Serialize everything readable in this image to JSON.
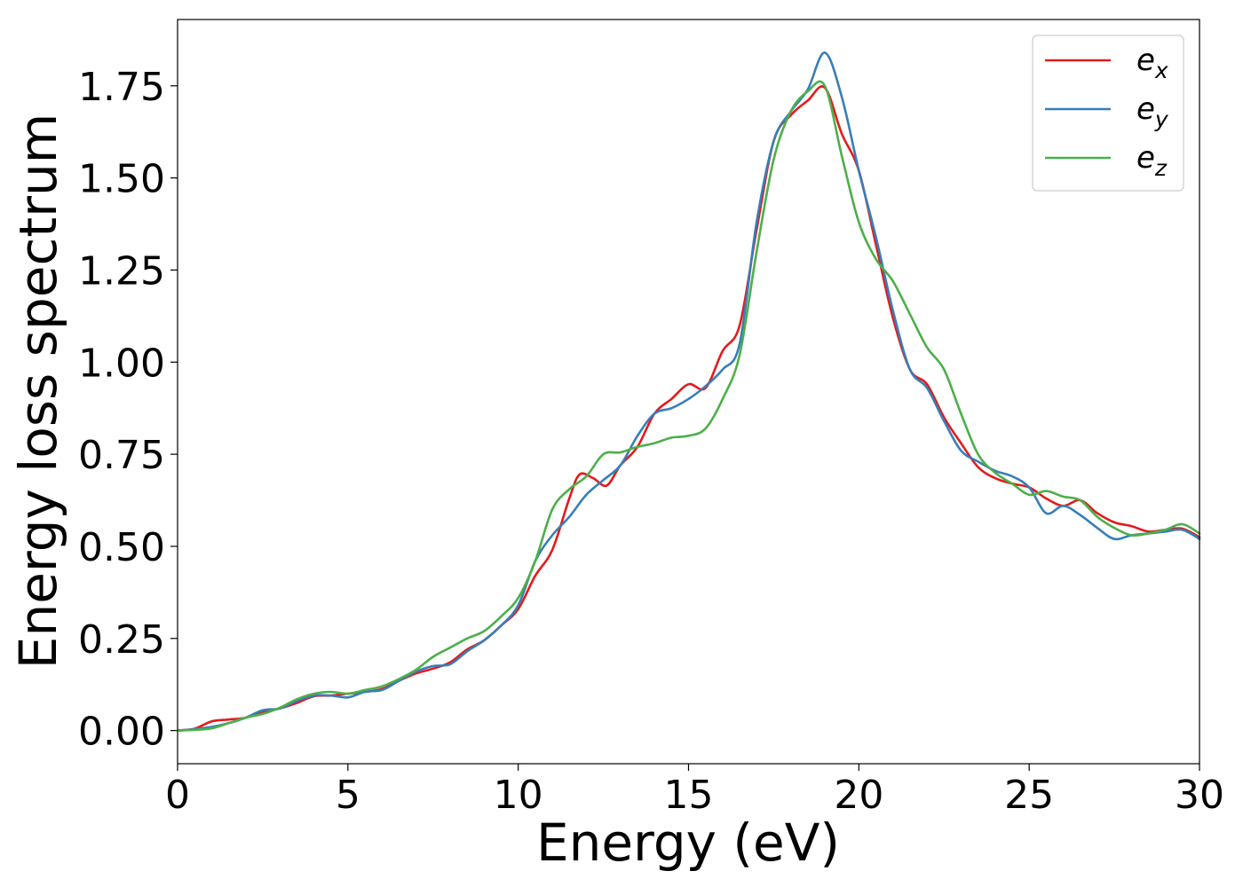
{
  "chart_data": {
    "type": "line",
    "title": "",
    "xlabel": "Energy (eV)",
    "ylabel": "Energy loss spectrum",
    "xlim": [
      0,
      30
    ],
    "ylim": [
      -0.09,
      1.93
    ],
    "x_ticks": [
      0,
      5,
      10,
      15,
      20,
      25,
      30
    ],
    "x_tick_labels": [
      "0",
      "5",
      "10",
      "15",
      "20",
      "25",
      "30"
    ],
    "y_ticks": [
      0.0,
      0.25,
      0.5,
      0.75,
      1.0,
      1.25,
      1.5,
      1.75
    ],
    "y_tick_labels": [
      "0.00",
      "0.25",
      "0.50",
      "0.75",
      "1.00",
      "1.25",
      "1.50",
      "1.75"
    ],
    "grid": false,
    "legend_position": "top-right",
    "series": [
      {
        "name": "e",
        "subscript": "x",
        "color": "#e41a1c",
        "points": [
          [
            0,
            0
          ],
          [
            0.5,
            0.005
          ],
          [
            1,
            0.025
          ],
          [
            1.5,
            0.03
          ],
          [
            2,
            0.035
          ],
          [
            2.5,
            0.05
          ],
          [
            3,
            0.06
          ],
          [
            3.5,
            0.075
          ],
          [
            4,
            0.093
          ],
          [
            4.5,
            0.095
          ],
          [
            5,
            0.1
          ],
          [
            5.5,
            0.105
          ],
          [
            6,
            0.113
          ],
          [
            6.5,
            0.135
          ],
          [
            7,
            0.155
          ],
          [
            7.5,
            0.168
          ],
          [
            8,
            0.185
          ],
          [
            8.5,
            0.22
          ],
          [
            9,
            0.245
          ],
          [
            9.5,
            0.285
          ],
          [
            10,
            0.33
          ],
          [
            10.5,
            0.42
          ],
          [
            11,
            0.49
          ],
          [
            11.5,
            0.63
          ],
          [
            11.8,
            0.695
          ],
          [
            12.2,
            0.685
          ],
          [
            12.6,
            0.665
          ],
          [
            13,
            0.72
          ],
          [
            13.5,
            0.77
          ],
          [
            14,
            0.86
          ],
          [
            14.5,
            0.9
          ],
          [
            15,
            0.94
          ],
          [
            15.5,
            0.93
          ],
          [
            16,
            1.03
          ],
          [
            16.5,
            1.1
          ],
          [
            17,
            1.36
          ],
          [
            17.5,
            1.6
          ],
          [
            18,
            1.67
          ],
          [
            18.5,
            1.71
          ],
          [
            19,
            1.745
          ],
          [
            19.5,
            1.62
          ],
          [
            20,
            1.52
          ],
          [
            20.5,
            1.32
          ],
          [
            21,
            1.12
          ],
          [
            21.5,
            0.98
          ],
          [
            22,
            0.94
          ],
          [
            22.5,
            0.85
          ],
          [
            23,
            0.78
          ],
          [
            23.5,
            0.715
          ],
          [
            24,
            0.685
          ],
          [
            24.5,
            0.67
          ],
          [
            25,
            0.66
          ],
          [
            25.5,
            0.63
          ],
          [
            26,
            0.61
          ],
          [
            26.5,
            0.625
          ],
          [
            27,
            0.59
          ],
          [
            27.5,
            0.565
          ],
          [
            28,
            0.555
          ],
          [
            28.5,
            0.54
          ],
          [
            29,
            0.545
          ],
          [
            29.5,
            0.548
          ],
          [
            30,
            0.525
          ]
        ]
      },
      {
        "name": "e",
        "subscript": "y",
        "color": "#377eb8",
        "points": [
          [
            0,
            0
          ],
          [
            0.5,
            0.004
          ],
          [
            1,
            0.01
          ],
          [
            1.5,
            0.02
          ],
          [
            2,
            0.035
          ],
          [
            2.5,
            0.055
          ],
          [
            3,
            0.06
          ],
          [
            3.5,
            0.08
          ],
          [
            4,
            0.095
          ],
          [
            4.5,
            0.095
          ],
          [
            5,
            0.09
          ],
          [
            5.5,
            0.105
          ],
          [
            6,
            0.11
          ],
          [
            6.5,
            0.135
          ],
          [
            7,
            0.16
          ],
          [
            7.5,
            0.175
          ],
          [
            8,
            0.18
          ],
          [
            8.5,
            0.215
          ],
          [
            9,
            0.245
          ],
          [
            9.5,
            0.285
          ],
          [
            10,
            0.34
          ],
          [
            10.5,
            0.46
          ],
          [
            11,
            0.53
          ],
          [
            11.5,
            0.58
          ],
          [
            12,
            0.64
          ],
          [
            12.5,
            0.68
          ],
          [
            13,
            0.72
          ],
          [
            13.5,
            0.8
          ],
          [
            14,
            0.86
          ],
          [
            14.5,
            0.875
          ],
          [
            15,
            0.9
          ],
          [
            15.5,
            0.935
          ],
          [
            16,
            0.98
          ],
          [
            16.5,
            1.05
          ],
          [
            17,
            1.38
          ],
          [
            17.5,
            1.6
          ],
          [
            18,
            1.68
          ],
          [
            18.5,
            1.74
          ],
          [
            19,
            1.84
          ],
          [
            19.5,
            1.72
          ],
          [
            20,
            1.52
          ],
          [
            20.5,
            1.34
          ],
          [
            21,
            1.14
          ],
          [
            21.5,
            0.98
          ],
          [
            22,
            0.93
          ],
          [
            22.5,
            0.84
          ],
          [
            23,
            0.76
          ],
          [
            23.5,
            0.73
          ],
          [
            24,
            0.705
          ],
          [
            24.5,
            0.69
          ],
          [
            25,
            0.66
          ],
          [
            25.5,
            0.59
          ],
          [
            26,
            0.61
          ],
          [
            26.5,
            0.585
          ],
          [
            27,
            0.55
          ],
          [
            27.5,
            0.52
          ],
          [
            28,
            0.53
          ],
          [
            28.5,
            0.535
          ],
          [
            29,
            0.54
          ],
          [
            29.5,
            0.545
          ],
          [
            30,
            0.52
          ]
        ]
      },
      {
        "name": "e",
        "subscript": "z",
        "color": "#4daf4a",
        "points": [
          [
            0,
            0
          ],
          [
            0.5,
            0.002
          ],
          [
            1,
            0.006
          ],
          [
            1.5,
            0.02
          ],
          [
            2,
            0.035
          ],
          [
            2.5,
            0.045
          ],
          [
            3,
            0.062
          ],
          [
            3.5,
            0.085
          ],
          [
            4,
            0.1
          ],
          [
            4.5,
            0.105
          ],
          [
            5,
            0.1
          ],
          [
            5.5,
            0.11
          ],
          [
            6,
            0.12
          ],
          [
            6.5,
            0.14
          ],
          [
            7,
            0.165
          ],
          [
            7.5,
            0.2
          ],
          [
            8,
            0.225
          ],
          [
            8.5,
            0.25
          ],
          [
            9,
            0.27
          ],
          [
            9.5,
            0.31
          ],
          [
            10,
            0.36
          ],
          [
            10.5,
            0.46
          ],
          [
            11,
            0.6
          ],
          [
            11.5,
            0.655
          ],
          [
            12,
            0.69
          ],
          [
            12.5,
            0.75
          ],
          [
            13,
            0.755
          ],
          [
            13.5,
            0.77
          ],
          [
            14,
            0.78
          ],
          [
            14.5,
            0.795
          ],
          [
            15,
            0.8
          ],
          [
            15.5,
            0.82
          ],
          [
            16,
            0.9
          ],
          [
            16.5,
            1.02
          ],
          [
            17,
            1.3
          ],
          [
            17.5,
            1.55
          ],
          [
            18,
            1.68
          ],
          [
            18.5,
            1.735
          ],
          [
            19,
            1.75
          ],
          [
            19.5,
            1.56
          ],
          [
            20,
            1.38
          ],
          [
            20.5,
            1.28
          ],
          [
            21,
            1.22
          ],
          [
            21.5,
            1.13
          ],
          [
            22,
            1.04
          ],
          [
            22.5,
            0.98
          ],
          [
            23,
            0.86
          ],
          [
            23.5,
            0.75
          ],
          [
            24,
            0.7
          ],
          [
            24.5,
            0.67
          ],
          [
            25,
            0.64
          ],
          [
            25.5,
            0.65
          ],
          [
            26,
            0.635
          ],
          [
            26.5,
            0.625
          ],
          [
            27,
            0.58
          ],
          [
            27.5,
            0.55
          ],
          [
            28,
            0.53
          ],
          [
            28.5,
            0.535
          ],
          [
            29,
            0.545
          ],
          [
            29.5,
            0.56
          ],
          [
            30,
            0.535
          ]
        ]
      }
    ]
  }
}
